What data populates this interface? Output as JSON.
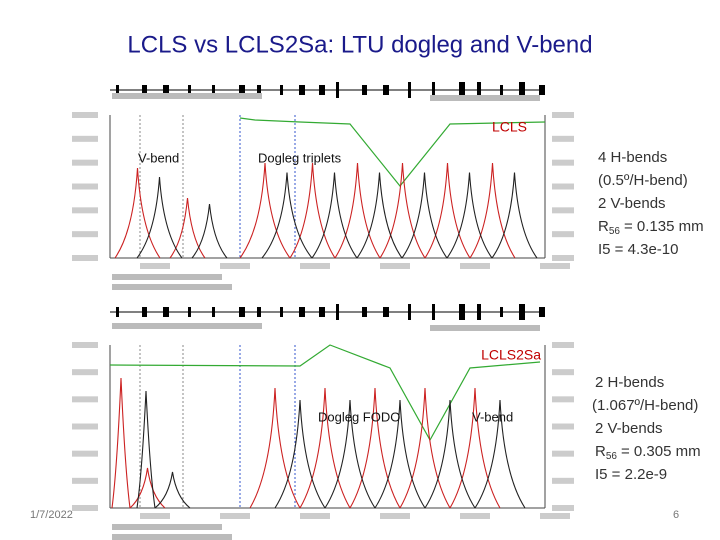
{
  "title": "LCLS vs LCLS2Sa: LTU dogleg and V-bend",
  "upper": {
    "tag": "LCLS",
    "labels": [
      "V-bend",
      "Dogleg triplets"
    ],
    "notes": [
      "4 H-bends",
      "(0.5º/H-bend)",
      "2 V-bends"
    ],
    "r56": {
      "symbol": "R",
      "sub": "56",
      "text": "= 0.135 mm"
    },
    "i5": "I5 = 4.3e-10"
  },
  "lower": {
    "tag": "LCLS2Sa",
    "labels": [
      "Dogleg FODO",
      "V-bend"
    ],
    "notes": [
      "2 H-bends",
      "(1.067º/H-bend)",
      "2 V-bends"
    ],
    "r56": {
      "symbol": "R",
      "sub": "56",
      "text": "= 0.305 mm"
    },
    "i5": "I5 = 2.2e-9"
  },
  "footer": {
    "date": "1/7/2022",
    "page": "6"
  }
}
